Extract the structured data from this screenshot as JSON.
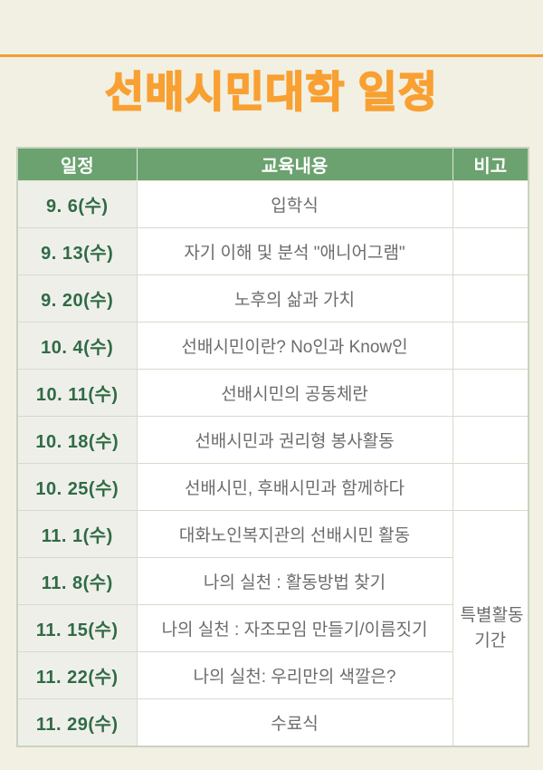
{
  "page": {
    "background_color": "#F2F0E2",
    "accent_orange": "#F8A032",
    "header_green": "#6BA26F",
    "date_text_green": "#2F6B45",
    "body_text_gray": "#6C6C6C"
  },
  "title": "선배시민대학 일정",
  "table": {
    "headers": [
      "일정",
      "교육내용",
      "비고"
    ],
    "rows": [
      {
        "date": "9. 6(수)",
        "content": "입학식",
        "remark": ""
      },
      {
        "date": "9. 13(수)",
        "content": "자기 이해 및 분석 \"애니어그램\"",
        "remark": ""
      },
      {
        "date": "9. 20(수)",
        "content": "노후의 삶과 가치",
        "remark": ""
      },
      {
        "date": "10. 4(수)",
        "content": "선배시민이란? No인과 Know인",
        "remark": ""
      },
      {
        "date": "10. 11(수)",
        "content": "선배시민의 공동체란",
        "remark": ""
      },
      {
        "date": "10. 18(수)",
        "content": "선배시민과 권리형 봉사활동",
        "remark": ""
      },
      {
        "date": "10. 25(수)",
        "content": "선배시민, 후배시민과 함께하다",
        "remark": ""
      },
      {
        "date": "11. 1(수)",
        "content": "대화노인복지관의 선배시민 활동",
        "remark": "특별활동 기간",
        "remark_rowspan": 5
      },
      {
        "date": "11. 8(수)",
        "content": "나의 실천 : 활동방법 찾기"
      },
      {
        "date": "11. 15(수)",
        "content": "나의 실천 : 자조모임 만들기/이름짓기"
      },
      {
        "date": "11. 22(수)",
        "content": "나의 실천: 우리만의 색깔은?"
      },
      {
        "date": "11. 29(수)",
        "content": "수료식"
      }
    ]
  }
}
